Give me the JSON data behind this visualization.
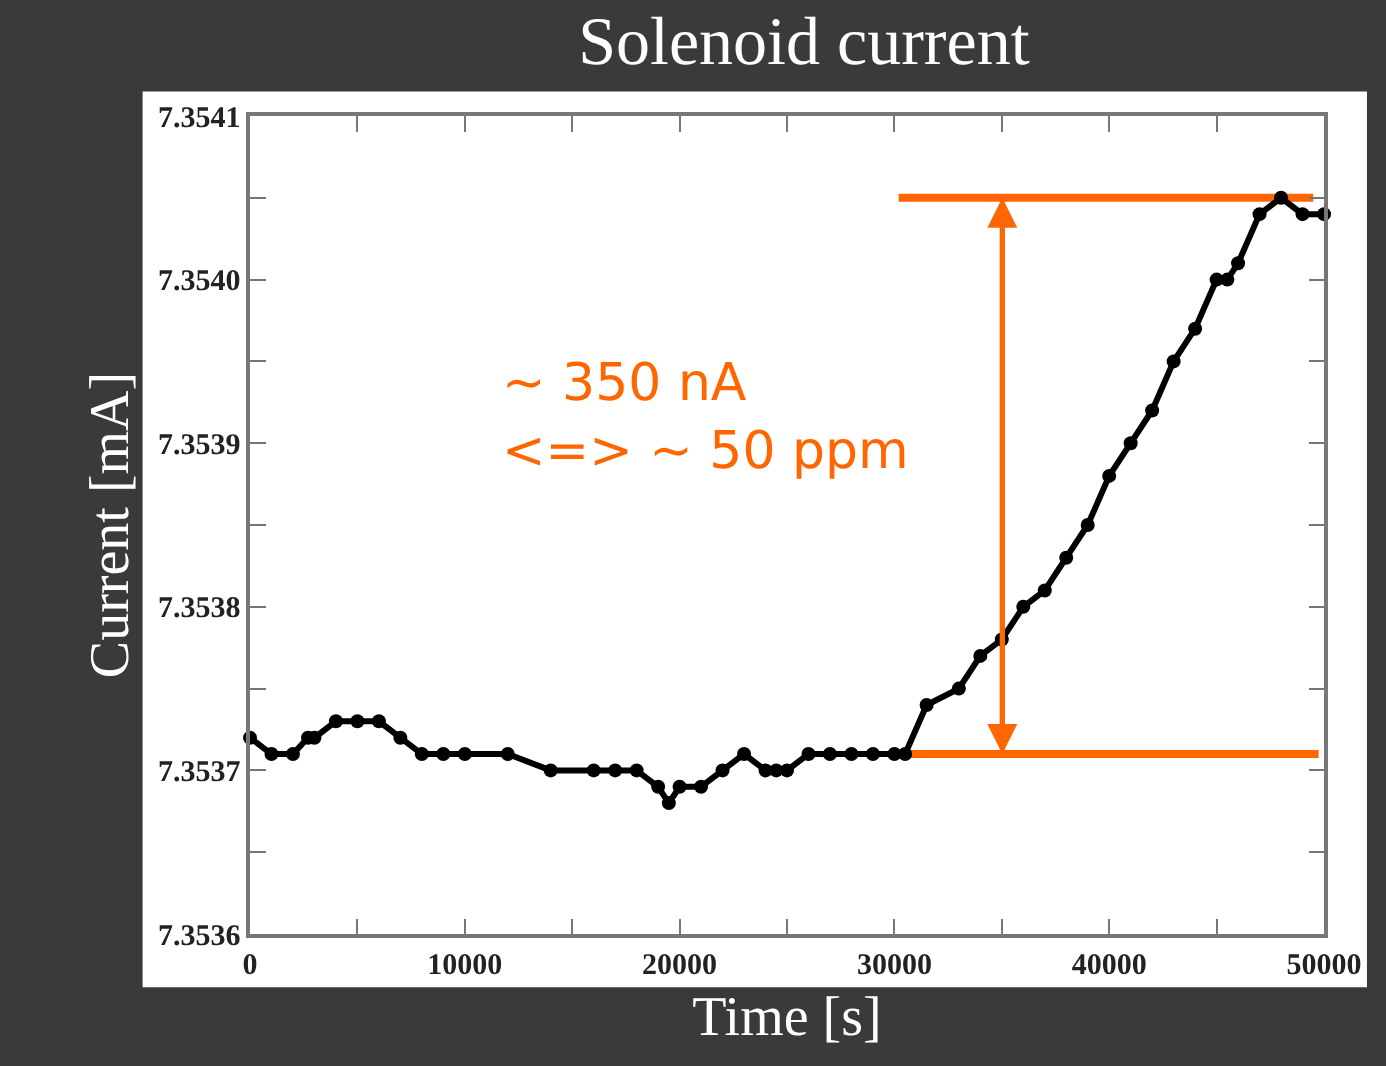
{
  "chart_data": {
    "type": "line",
    "title": "Solenoid current",
    "xlabel": "Time [s]",
    "ylabel": "Current [mA]",
    "x": [
      0,
      1000,
      2000,
      2700,
      3000,
      4000,
      5000,
      6000,
      7000,
      8000,
      9000,
      10000,
      12000,
      14000,
      16000,
      17000,
      18000,
      19000,
      19500,
      20000,
      21000,
      22000,
      23000,
      24000,
      24500,
      25000,
      26000,
      27000,
      28000,
      29000,
      30000,
      30500,
      31500,
      33000,
      34000,
      35000,
      36000,
      37000,
      38000,
      39000,
      40000,
      41000,
      42000,
      43000,
      44000,
      45000,
      45500,
      46000,
      47000,
      48000,
      49000,
      50000
    ],
    "series": [
      {
        "color": "#000000",
        "marker": "circle",
        "values": [
          7.35372,
          7.35371,
          7.35371,
          7.35372,
          7.35372,
          7.35373,
          7.35373,
          7.35373,
          7.35372,
          7.35371,
          7.35371,
          7.35371,
          7.35371,
          7.3537,
          7.3537,
          7.3537,
          7.3537,
          7.35369,
          7.35368,
          7.35369,
          7.35369,
          7.3537,
          7.35371,
          7.3537,
          7.3537,
          7.3537,
          7.35371,
          7.35371,
          7.35371,
          7.35371,
          7.35371,
          7.35371,
          7.35374,
          7.35375,
          7.35377,
          7.35378,
          7.3538,
          7.35381,
          7.35383,
          7.35385,
          7.35388,
          7.3539,
          7.35392,
          7.35395,
          7.35397,
          7.354,
          7.354,
          7.35401,
          7.35404,
          7.35405,
          7.35404,
          7.35404
        ]
      },
      {
        "color": "#ff6600",
        "marker": "none",
        "x": [
          30200,
          49500
        ],
        "values": [
          7.35405,
          7.35405
        ]
      },
      {
        "color": "#ff6600",
        "marker": "none",
        "x": [
          30500,
          49750
        ],
        "values": [
          7.35371,
          7.35371
        ]
      }
    ],
    "annotations": [
      "~ 350 nA\n<=> ~ 50 ppm"
    ],
    "xlim": [
      0,
      50000
    ],
    "xticks": [
      0,
      {
        "value": 5000,
        "label": null
      },
      10000,
      {
        "value": 15000,
        "label": null
      },
      20000,
      {
        "value": 25000,
        "label": null
      },
      30000,
      {
        "value": 35000,
        "label": null
      },
      40000,
      {
        "value": 45000,
        "label": null
      },
      50000
    ],
    "ylim": [
      7.3536,
      7.3541
    ],
    "yticks": [
      7.3536,
      {
        "value": 7.35365,
        "label": null
      },
      7.3537,
      {
        "value": 7.35375,
        "label": null
      },
      7.3538,
      {
        "value": 7.35385,
        "label": null
      },
      7.3539,
      {
        "value": 7.35395,
        "label": null
      },
      {
        "value": 7.354,
        "label": "7.3540"
      },
      {
        "value": 7.35405,
        "label": null
      },
      7.3541
    ]
  }
}
